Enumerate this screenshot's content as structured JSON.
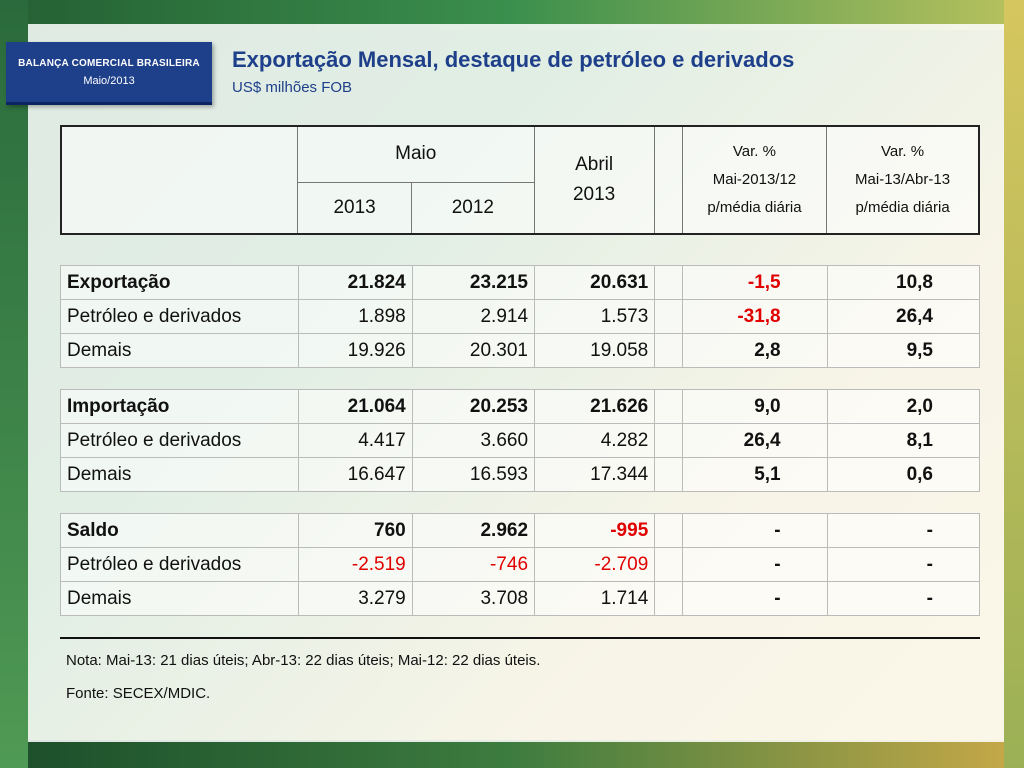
{
  "badge": {
    "line1": "BALANÇA COMERCIAL BRASILEIRA",
    "line2": "Maio/2013"
  },
  "title": "Exportação Mensal, destaque de petróleo e derivados",
  "subtitle": "US$ milhões FOB",
  "header": {
    "maio": "Maio",
    "y2013": "2013",
    "y2012": "2012",
    "abril": "Abril",
    "abril_year": "2013",
    "var1": [
      "Var. %",
      "Mai-2013/12",
      "p/média diária"
    ],
    "var2": [
      "Var. %",
      "Mai-13/Abr-13",
      "p/média diária"
    ]
  },
  "sections": [
    {
      "rows": [
        {
          "label": "Exportação",
          "bold": true,
          "v": [
            "21.824",
            "23.215",
            "20.631",
            "-1,5",
            "10,8"
          ],
          "red": [
            false,
            false,
            false,
            true,
            false
          ]
        },
        {
          "label": "Petróleo e derivados",
          "bold": false,
          "v": [
            "1.898",
            "2.914",
            "1.573",
            "-31,8",
            "26,4"
          ],
          "red": [
            false,
            false,
            false,
            true,
            false
          ]
        },
        {
          "label": "Demais",
          "bold": false,
          "v": [
            "19.926",
            "20.301",
            "19.058",
            "2,8",
            "9,5"
          ],
          "red": [
            false,
            false,
            false,
            false,
            false
          ]
        }
      ]
    },
    {
      "rows": [
        {
          "label": "Importação",
          "bold": true,
          "v": [
            "21.064",
            "20.253",
            "21.626",
            "9,0",
            "2,0"
          ],
          "red": [
            false,
            false,
            false,
            false,
            false
          ]
        },
        {
          "label": "Petróleo e derivados",
          "bold": false,
          "v": [
            "4.417",
            "3.660",
            "4.282",
            "26,4",
            "8,1"
          ],
          "red": [
            false,
            false,
            false,
            false,
            false
          ]
        },
        {
          "label": "Demais",
          "bold": false,
          "v": [
            "16.647",
            "16.593",
            "17.344",
            "5,1",
            "0,6"
          ],
          "red": [
            false,
            false,
            false,
            false,
            false
          ]
        }
      ]
    },
    {
      "rows": [
        {
          "label": "Saldo",
          "bold": true,
          "v": [
            "760",
            "2.962",
            "-995",
            "-",
            "-"
          ],
          "red": [
            false,
            false,
            true,
            false,
            false
          ]
        },
        {
          "label": "Petróleo e derivados",
          "bold": false,
          "v": [
            "-2.519",
            "-746",
            "-2.709",
            "-",
            "-"
          ],
          "red": [
            true,
            true,
            true,
            false,
            false
          ]
        },
        {
          "label": "Demais",
          "bold": false,
          "v": [
            "3.279",
            "3.708",
            "1.714",
            "-",
            "-"
          ],
          "red": [
            false,
            false,
            false,
            false,
            false
          ]
        }
      ]
    }
  ],
  "note": "Nota: Mai-13: 21 dias úteis; Abr-13: 22 dias úteis; Mai-12: 22 dias úteis.",
  "source": "Fonte: SECEX/MDIC.",
  "colors": {
    "brand": "#1e3f8a",
    "negative": "#e00000"
  }
}
